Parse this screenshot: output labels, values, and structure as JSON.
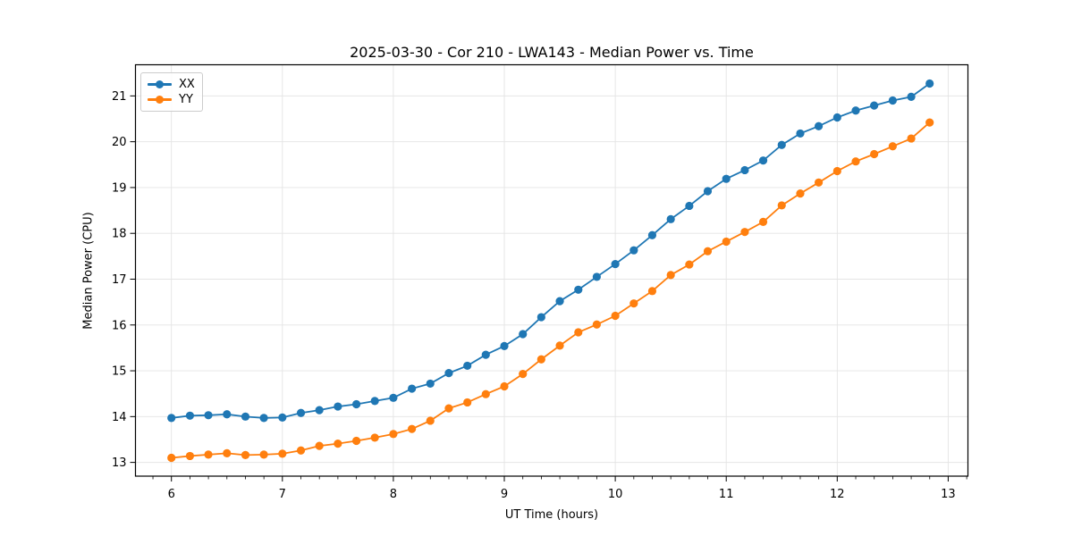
{
  "chart_data": {
    "type": "line",
    "title": "2025-03-30 - Cor 210 - LWA143 - Median Power vs. Time",
    "xlabel": "UT Time (hours)",
    "ylabel": "Median Power (CPU)",
    "xlim": [
      5.676,
      13.178
    ],
    "ylim": [
      12.7,
      21.68
    ],
    "xticks": [
      6,
      7,
      8,
      9,
      10,
      11,
      12,
      13
    ],
    "yticks": [
      13,
      14,
      15,
      16,
      17,
      18,
      19,
      20,
      21
    ],
    "x_minor_tick_interval": 0.16667,
    "grid": true,
    "legend_position": "upper-left",
    "x": [
      6.0,
      6.167,
      6.333,
      6.5,
      6.667,
      6.833,
      7.0,
      7.167,
      7.333,
      7.5,
      7.667,
      7.833,
      8.0,
      8.167,
      8.333,
      8.5,
      8.667,
      8.833,
      9.0,
      9.167,
      9.333,
      9.5,
      9.667,
      9.833,
      10.0,
      10.167,
      10.333,
      10.5,
      10.667,
      10.833,
      11.0,
      11.167,
      11.333,
      11.5,
      11.667,
      11.833,
      12.0,
      12.167,
      12.333,
      12.5,
      12.667,
      12.833
    ],
    "series": [
      {
        "name": "XX",
        "color": "#1f77b4",
        "values": [
          13.97,
          14.02,
          14.03,
          14.05,
          14.0,
          13.97,
          13.98,
          14.08,
          14.14,
          14.22,
          14.27,
          14.34,
          14.41,
          14.61,
          14.72,
          14.95,
          15.11,
          15.35,
          15.54,
          15.8,
          16.17,
          16.52,
          16.77,
          17.05,
          17.33,
          17.63,
          17.96,
          18.31,
          18.6,
          18.92,
          19.19,
          19.38,
          19.59,
          19.93,
          20.18,
          20.34,
          20.53,
          20.68,
          20.79,
          20.9,
          20.98,
          21.27
        ]
      },
      {
        "name": "YY",
        "color": "#ff7f0e",
        "values": [
          13.1,
          13.14,
          13.17,
          13.2,
          13.16,
          13.17,
          13.19,
          13.26,
          13.36,
          13.41,
          13.47,
          13.54,
          13.62,
          13.73,
          13.91,
          14.18,
          14.31,
          14.49,
          14.66,
          14.93,
          15.25,
          15.55,
          15.84,
          16.01,
          16.2,
          16.47,
          16.74,
          17.09,
          17.32,
          17.61,
          17.82,
          18.03,
          18.25,
          18.61,
          18.87,
          19.11,
          19.36,
          19.57,
          19.73,
          19.9,
          20.07,
          20.42
        ]
      }
    ]
  }
}
